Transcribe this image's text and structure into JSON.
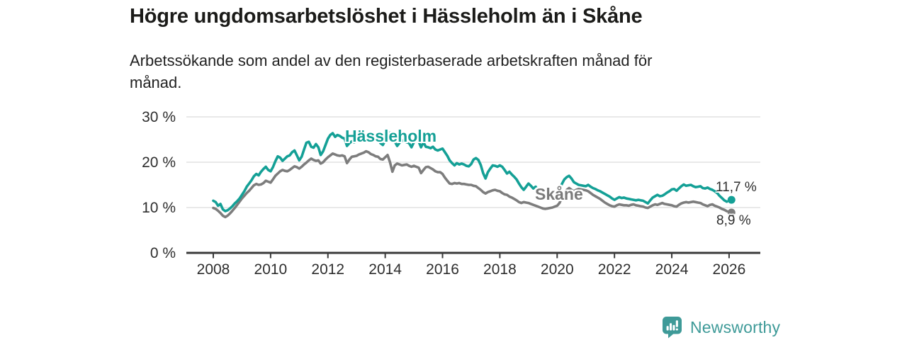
{
  "header": {
    "title": "Högre ungdomsarbetslöshet i Hässleholm än i Skåne",
    "subtitle": "Arbetssökande som andel av den registerbaserade arbetskraften månad för månad."
  },
  "chart_data": {
    "type": "line",
    "title": "Högre ungdomsarbetslöshet i Hässleholm än i Skåne",
    "subtitle": "Arbetssökande som andel av den registerbaserade arbetskraften månad för månad.",
    "unit": "%",
    "x_start_year": 2008,
    "x_months_per_point": 1,
    "x_ticks": [
      2008,
      2010,
      2012,
      2014,
      2016,
      2018,
      2020,
      2022,
      2024,
      2026
    ],
    "y_ticks": [
      {
        "value": 0,
        "label": "0 %"
      },
      {
        "value": 10,
        "label": "10 %"
      },
      {
        "value": 20,
        "label": "20 %"
      },
      {
        "value": 30,
        "label": "30 %"
      }
    ],
    "ylim": [
      0,
      30
    ],
    "grid": "horizontal",
    "legend_position": "inline-labels",
    "series": [
      {
        "name": "Hässleholm",
        "color": "#14a096",
        "end_value_label": "11,7 %",
        "end_point": {
          "year": 2026.083,
          "value": 11.7
        },
        "end_connector": "dashed",
        "values": [
          11.5,
          11.2,
          10.4,
          10.8,
          9.6,
          9.2,
          9.4,
          9.8,
          10.3,
          10.9,
          11.4,
          12.0,
          12.8,
          13.6,
          14.6,
          15.3,
          16.0,
          16.9,
          17.4,
          17.1,
          17.9,
          18.5,
          19.0,
          18.3,
          18.0,
          18.9,
          20.2,
          21.3,
          21.0,
          20.3,
          20.8,
          21.3,
          21.5,
          22.2,
          22.6,
          21.5,
          20.4,
          21.2,
          22.8,
          24.3,
          24.5,
          23.4,
          23.2,
          24.0,
          23.3,
          21.6,
          22.4,
          23.8,
          25.2,
          26.0,
          26.4,
          25.6,
          26.0,
          25.8,
          25.4,
          25.2,
          23.6,
          24.2,
          24.6,
          24.4,
          24.6,
          25.0,
          25.3,
          25.7,
          26.1,
          25.9,
          25.6,
          25.4,
          25.2,
          25.3,
          24.2,
          23.8,
          24.8,
          26.2,
          26.5,
          25.8,
          24.6,
          23.6,
          24.3,
          24.8,
          24.6,
          24.4,
          24.2,
          23.3,
          24.4,
          25.0,
          24.6,
          23.3,
          24.4,
          23.4,
          23.3,
          23.1,
          23.4,
          22.8,
          22.6,
          22.8,
          23.0,
          22.2,
          21.4,
          20.4,
          19.8,
          19.3,
          19.8,
          19.5,
          19.7,
          19.5,
          19.2,
          19.1,
          19.6,
          20.6,
          20.9,
          20.5,
          19.4,
          17.6,
          16.4,
          17.8,
          18.6,
          19.3,
          19.2,
          19.0,
          19.3,
          19.0,
          18.3,
          17.5,
          17.9,
          17.3,
          16.8,
          16.2,
          15.3,
          14.5,
          13.9,
          14.6,
          15.3,
          14.8,
          14.2,
          14.6,
          13.6,
          12.9,
          12.5,
          12.3,
          12.4,
          12.6,
          12.8,
          13.0,
          13.2,
          13.8,
          15.2,
          16.2,
          16.7,
          17.0,
          16.4,
          15.6,
          15.3,
          15.0,
          14.9,
          14.8,
          14.7,
          15.0,
          14.6,
          14.3,
          14.1,
          13.8,
          13.6,
          13.3,
          13.0,
          12.7,
          12.4,
          12.0,
          11.7,
          12.0,
          12.3,
          12.1,
          12.2,
          12.0,
          11.9,
          11.8,
          11.7,
          11.6,
          11.7,
          11.6,
          11.5,
          11.2,
          10.9,
          11.6,
          12.2,
          12.5,
          12.8,
          12.5,
          12.6,
          12.9,
          13.3,
          13.6,
          14.0,
          14.1,
          13.7,
          14.2,
          14.7,
          15.1,
          14.8,
          14.9,
          15.0,
          14.7,
          14.5,
          14.6,
          14.7,
          14.3,
          14.2,
          14.4,
          14.1,
          13.9,
          13.6,
          13.2,
          12.6,
          12.1,
          11.6,
          11.3
        ]
      },
      {
        "name": "Skåne",
        "color": "#7d7d7d",
        "end_value_label": "8,9 %",
        "end_point": {
          "year": 2026.083,
          "value": 8.9
        },
        "end_connector": "solid",
        "values": [
          9.9,
          9.7,
          9.3,
          8.8,
          8.2,
          7.9,
          8.2,
          8.7,
          9.3,
          9.9,
          10.6,
          11.3,
          12.0,
          12.6,
          13.2,
          13.7,
          14.3,
          14.9,
          15.2,
          15.0,
          15.1,
          15.4,
          15.9,
          15.7,
          15.5,
          16.2,
          17.0,
          17.5,
          18.0,
          18.3,
          18.1,
          18.0,
          18.3,
          18.7,
          19.1,
          18.9,
          18.6,
          19.0,
          19.5,
          19.9,
          20.4,
          20.8,
          20.5,
          20.3,
          20.4,
          19.7,
          20.0,
          20.6,
          21.1,
          21.5,
          21.9,
          21.7,
          21.5,
          21.4,
          21.5,
          21.3,
          19.8,
          20.6,
          21.2,
          21.3,
          21.4,
          21.7,
          21.9,
          22.1,
          22.4,
          22.2,
          21.8,
          21.6,
          21.3,
          21.2,
          20.7,
          20.6,
          21.1,
          21.6,
          20.0,
          17.9,
          19.3,
          19.7,
          19.5,
          19.3,
          19.4,
          19.5,
          19.2,
          19.0,
          19.2,
          19.0,
          18.8,
          17.6,
          18.3,
          18.9,
          19.0,
          18.7,
          18.4,
          18.0,
          17.8,
          17.8,
          17.4,
          16.6,
          15.9,
          15.3,
          15.2,
          15.4,
          15.3,
          15.4,
          15.2,
          15.2,
          15.1,
          15.0,
          15.0,
          14.8,
          14.7,
          14.3,
          13.9,
          13.4,
          13.1,
          13.4,
          13.6,
          13.8,
          13.9,
          13.7,
          13.6,
          13.2,
          12.9,
          12.8,
          12.4,
          12.2,
          11.9,
          11.6,
          11.2,
          11.0,
          11.2,
          11.1,
          11.0,
          10.8,
          10.6,
          10.4,
          10.2,
          10.0,
          9.8,
          9.7,
          9.8,
          9.9,
          10.0,
          10.2,
          10.4,
          11.0,
          12.2,
          13.2,
          13.9,
          14.3,
          13.9,
          13.6,
          13.9,
          14.1,
          14.0,
          13.9,
          13.8,
          13.6,
          13.2,
          12.8,
          12.5,
          12.2,
          11.9,
          11.5,
          11.1,
          10.8,
          10.5,
          10.3,
          10.2,
          10.5,
          10.7,
          10.6,
          10.5,
          10.5,
          10.4,
          10.6,
          10.7,
          10.5,
          10.4,
          10.3,
          10.2,
          10.0,
          9.9,
          10.2,
          10.5,
          10.7,
          10.6,
          10.8,
          11.0,
          10.8,
          10.7,
          10.6,
          10.5,
          10.3,
          10.2,
          10.6,
          10.9,
          11.1,
          11.2,
          11.1,
          11.2,
          11.3,
          11.2,
          11.1,
          11.0,
          10.7,
          10.5,
          10.3,
          10.6,
          10.7,
          10.4,
          10.2,
          10.0,
          9.7,
          9.5,
          9.2
        ]
      }
    ]
  },
  "colors": {
    "accent_teal": "#14a096",
    "series_gray": "#7d7d7d",
    "axis": "#3a3a3a",
    "gridline": "#dcdcdc",
    "tick_text": "#2e2e2e"
  },
  "footer": {
    "brand": "Newsworthy",
    "brand_color": "#3e9a98",
    "logo_icon": "bar-chart-speech-bubble"
  }
}
